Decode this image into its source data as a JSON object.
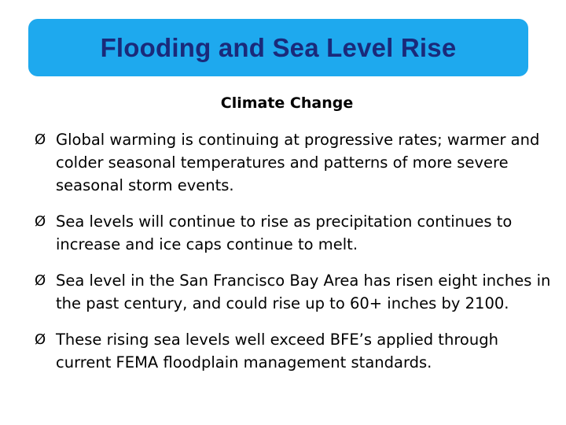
{
  "slide": {
    "title": "Flooding and Sea Level Rise",
    "subtitle": "Climate Change",
    "bullet_marker": "Ø",
    "bullets": [
      "Global warming is continuing at progressive rates; warmer and colder seasonal temperatures and patterns of more severe seasonal storm events.",
      "Sea levels will continue to rise as precipitation continues to increase and ice caps continue to melt.",
      "Sea level in the San Francisco Bay Area has risen eight inches in the past century, and could rise up to 60+ inches by 2100.",
      "These rising sea levels well exceed BFE’s applied through current FEMA floodplain management standards."
    ]
  },
  "colors": {
    "banner": "#1ea9ee",
    "title_text": "#1a2a7a"
  }
}
